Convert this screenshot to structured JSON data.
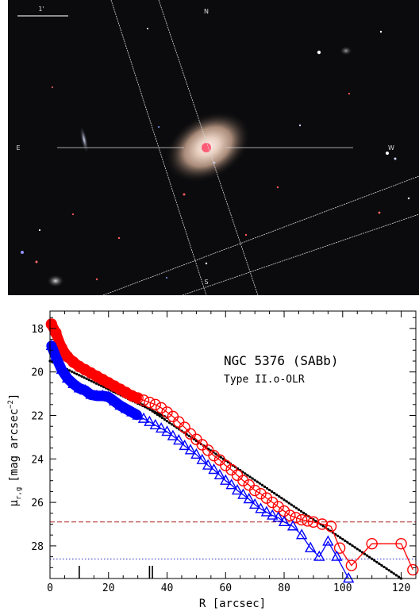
{
  "image": {
    "scale_bar_label": "1'",
    "compass": {
      "north": "N",
      "south": "S",
      "east": "E",
      "west": "W"
    }
  },
  "chart_data": {
    "type": "scatter",
    "title": "NGC 5376 (SABb)",
    "subtitle": "Type II.o-OLR",
    "xlabel": "R [arcsec]",
    "ylabel": "μr,g [mag arcsec−2]",
    "ylabel_parts": {
      "sym": "μ",
      "sub": "r,g",
      "unit_a": "[mag arcsec",
      "sup": "−2",
      "unit_b": "]"
    },
    "xlim": [
      0,
      125
    ],
    "ylim": [
      29.5,
      17.2
    ],
    "y_inverted": true,
    "xticks": [
      0,
      20,
      40,
      60,
      80,
      100,
      120
    ],
    "yticks": [
      18,
      20,
      22,
      24,
      26,
      28
    ],
    "colors": {
      "r": "#ff0000",
      "g": "#0000ff",
      "fit": "#000000",
      "r_limit": "#b02020",
      "g_limit": "#2020c0"
    },
    "series": [
      {
        "marker": "circle",
        "color": "#ff0000",
        "x": [
          0.5,
          2,
          4,
          6,
          8,
          10,
          12,
          14,
          16,
          18,
          20,
          22,
          24,
          26,
          28,
          30,
          32,
          34,
          36,
          38,
          40,
          42,
          44,
          46,
          48,
          50,
          52,
          54,
          56,
          58,
          60,
          62,
          64,
          66,
          68,
          70,
          72,
          74,
          76,
          78,
          80,
          82,
          84,
          86,
          88,
          90,
          93,
          96,
          99,
          103,
          110,
          120,
          124
        ],
        "y": [
          17.8,
          18.2,
          18.9,
          19.3,
          19.55,
          19.75,
          19.9,
          20.05,
          20.2,
          20.35,
          20.5,
          20.65,
          20.8,
          20.95,
          21.1,
          21.2,
          21.3,
          21.4,
          21.5,
          21.65,
          21.85,
          22.05,
          22.3,
          22.55,
          22.85,
          23.1,
          23.35,
          23.6,
          23.85,
          24.05,
          24.3,
          24.5,
          24.75,
          25,
          25.2,
          25.45,
          25.6,
          25.8,
          26,
          26.2,
          26.4,
          26.6,
          26.7,
          26.8,
          26.85,
          26.9,
          27,
          27.1,
          28.1,
          28.9,
          27.9,
          27.9,
          29.1
        ]
      },
      {
        "marker": "triangle",
        "color": "#0000ff",
        "x": [
          0.5,
          2,
          4,
          6,
          8,
          10,
          12,
          14,
          16,
          18,
          20,
          22,
          24,
          26,
          28,
          30,
          32,
          34,
          36,
          38,
          40,
          42,
          44,
          46,
          48,
          50,
          52,
          54,
          56,
          58,
          60,
          62,
          64,
          66,
          68,
          70,
          72,
          74,
          76,
          78,
          80,
          83,
          86,
          89,
          92,
          95,
          98,
          102
        ],
        "y": [
          18.8,
          19.3,
          19.9,
          20.3,
          20.55,
          20.75,
          20.85,
          21.05,
          21.1,
          21.1,
          21.15,
          21.35,
          21.55,
          21.7,
          21.85,
          22,
          22.15,
          22.3,
          22.45,
          22.6,
          22.75,
          22.95,
          23.15,
          23.4,
          23.6,
          23.8,
          24.05,
          24.3,
          24.5,
          24.75,
          25,
          25.2,
          25.45,
          25.65,
          25.85,
          26.1,
          26.3,
          26.45,
          26.6,
          26.7,
          26.9,
          27.1,
          27.5,
          28.1,
          28.5,
          27.8,
          28.5,
          29.5
        ]
      },
      {
        "marker": "fit",
        "color": "#000000",
        "x": [
          0,
          40
        ],
        "y": [
          19.5,
          22.1
        ]
      },
      {
        "marker": "fit",
        "color": "#000000",
        "x": [
          15,
          120
        ],
        "y": [
          20.0,
          29.5
        ]
      }
    ],
    "limits": [
      {
        "y": 26.9,
        "style": "dashed",
        "color": "#b02020"
      },
      {
        "y": 28.6,
        "style": "dotted",
        "color": "#2020c0"
      }
    ],
    "radial_marks": [
      10,
      34,
      35
    ],
    "grid": false,
    "legend": "none"
  }
}
